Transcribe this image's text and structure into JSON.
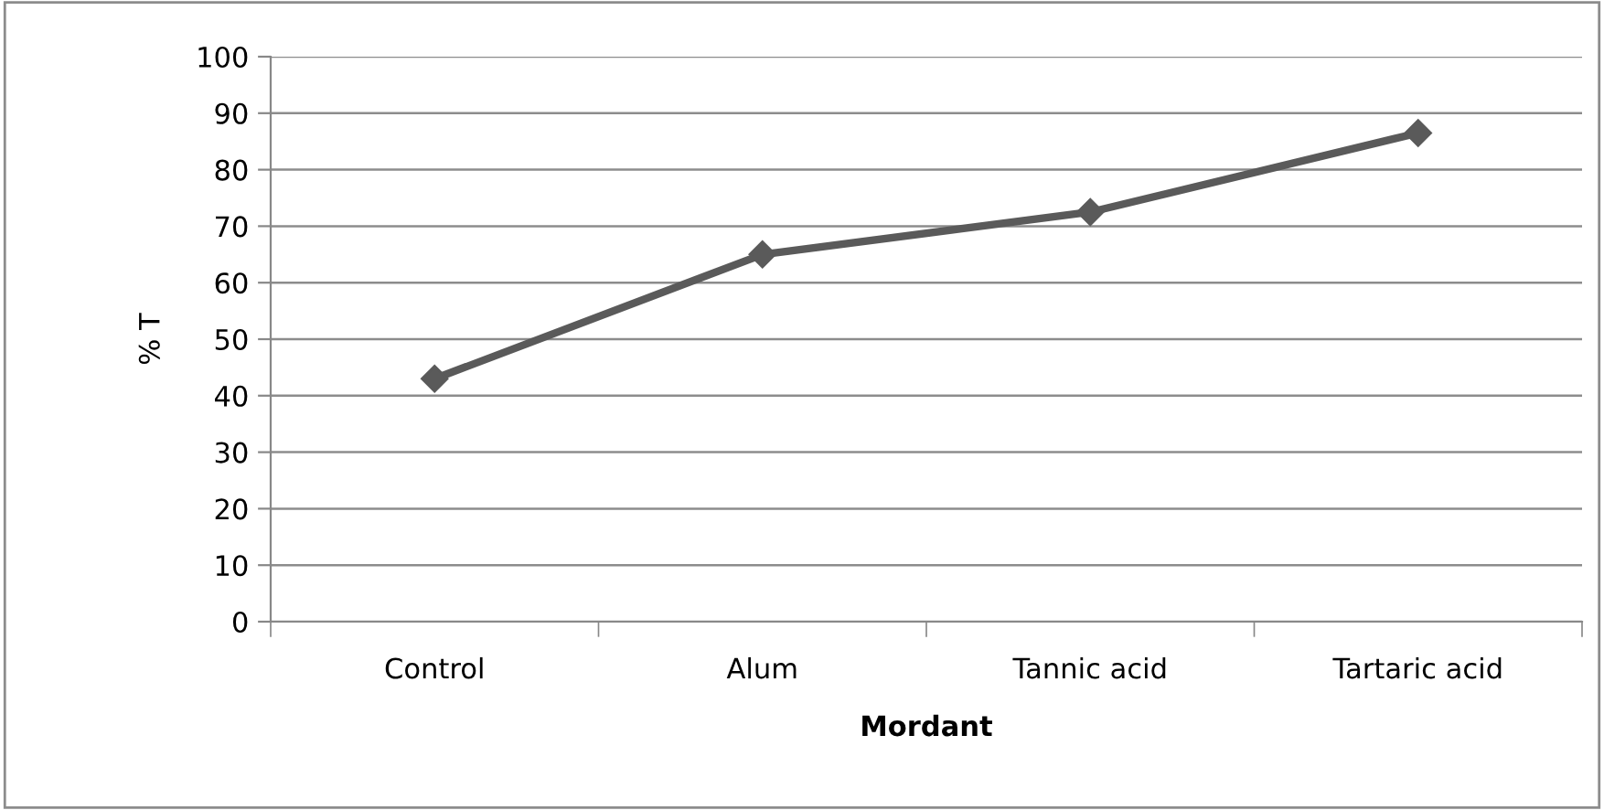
{
  "chart_data": {
    "type": "line",
    "xlabel": "Mordant",
    "ylabel": "% T",
    "categories": [
      "Control",
      "Alum",
      "Tannic acid",
      "Tartaric acid"
    ],
    "series": [
      {
        "color": "#5a5a5a",
        "values": [
          43,
          65,
          72.5,
          86.5
        ]
      }
    ],
    "ylim": [
      0,
      100
    ],
    "yticks": [
      0,
      10,
      20,
      30,
      40,
      50,
      60,
      70,
      80,
      90,
      100
    ],
    "grid": "y",
    "marker": "diamond",
    "line_style": "solid"
  }
}
